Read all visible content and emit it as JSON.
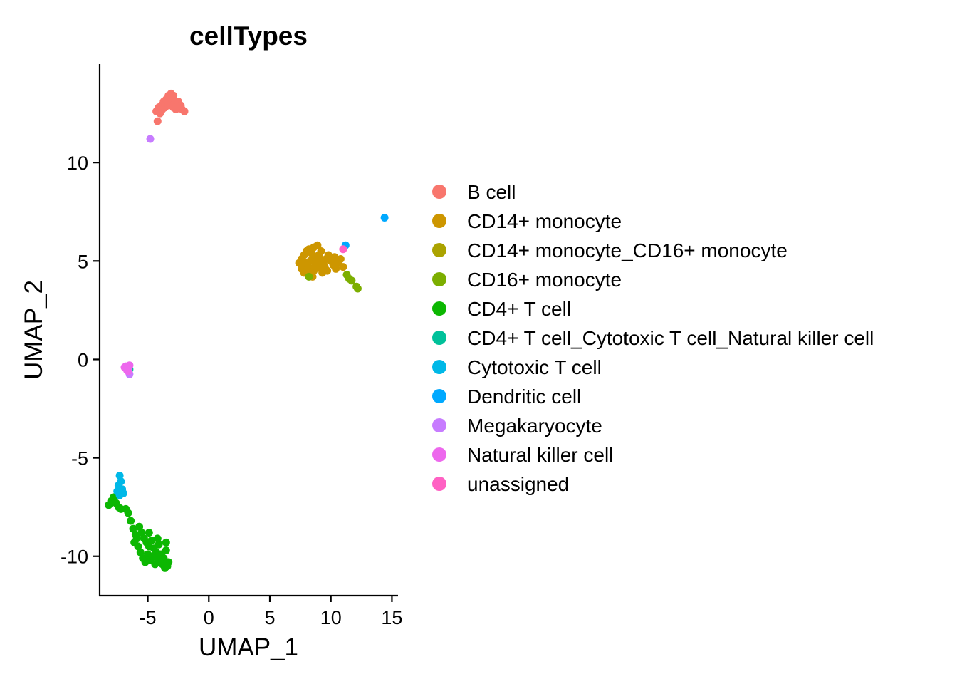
{
  "chart_data": {
    "type": "scatter",
    "title": "cellTypes",
    "xlabel": "UMAP_1",
    "ylabel": "UMAP_2",
    "xlim": [
      -9,
      15.5
    ],
    "ylim": [
      -12,
      15
    ],
    "xticks": [
      -5,
      0,
      5,
      10,
      15
    ],
    "xtick_labels": [
      "-5",
      "0",
      "5",
      "10",
      "15"
    ],
    "yticks": [
      -10,
      -5,
      0,
      5,
      10
    ],
    "ytick_labels": [
      "-10",
      "-5",
      "0",
      "5",
      "10"
    ],
    "grid": false,
    "legend_position": "right",
    "series": [
      {
        "name": "B cell",
        "color": "#F8766D",
        "points": [
          [
            -4.3,
            12.6
          ],
          [
            -4.1,
            12.8
          ],
          [
            -3.9,
            12.9
          ],
          [
            -3.7,
            13.1
          ],
          [
            -3.5,
            13.2
          ],
          [
            -3.3,
            13.4
          ],
          [
            -3.1,
            13.5
          ],
          [
            -2.9,
            13.4
          ],
          [
            -3.2,
            13.3
          ],
          [
            -3.4,
            13.0
          ],
          [
            -3.0,
            13.1
          ],
          [
            -2.8,
            13.0
          ],
          [
            -2.6,
            12.9
          ],
          [
            -2.4,
            12.8
          ],
          [
            -2.2,
            12.7
          ],
          [
            -2.0,
            12.6
          ],
          [
            -2.5,
            13.1
          ],
          [
            -3.6,
            12.8
          ],
          [
            -3.8,
            12.7
          ],
          [
            -4.0,
            12.5
          ],
          [
            -2.7,
            12.7
          ],
          [
            -3.3,
            12.9
          ],
          [
            -2.9,
            12.8
          ],
          [
            -2.3,
            12.9
          ],
          [
            -4.2,
            12.1
          ]
        ]
      },
      {
        "name": "CD14+ monocyte",
        "color": "#CD9600",
        "points": [
          [
            7.4,
            4.9
          ],
          [
            7.6,
            5.1
          ],
          [
            7.8,
            5.3
          ],
          [
            8.0,
            5.5
          ],
          [
            8.2,
            5.6
          ],
          [
            8.4,
            5.4
          ],
          [
            8.6,
            5.2
          ],
          [
            8.8,
            5.0
          ],
          [
            9.0,
            4.8
          ],
          [
            9.2,
            4.6
          ],
          [
            9.4,
            4.9
          ],
          [
            9.6,
            5.1
          ],
          [
            9.8,
            5.3
          ],
          [
            10.0,
            5.0
          ],
          [
            10.2,
            4.8
          ],
          [
            7.6,
            4.6
          ],
          [
            7.8,
            4.4
          ],
          [
            8.0,
            4.5
          ],
          [
            8.2,
            4.3
          ],
          [
            8.4,
            4.6
          ],
          [
            8.6,
            4.5
          ],
          [
            8.8,
            4.7
          ],
          [
            9.0,
            5.3
          ],
          [
            9.2,
            5.5
          ],
          [
            8.6,
            5.7
          ],
          [
            8.9,
            5.8
          ],
          [
            10.4,
            4.6
          ],
          [
            10.6,
            4.9
          ],
          [
            10.8,
            5.1
          ],
          [
            11.0,
            4.7
          ],
          [
            8.3,
            5.0
          ],
          [
            8.7,
            4.9
          ],
          [
            9.1,
            5.1
          ],
          [
            9.5,
            4.7
          ],
          [
            7.9,
            4.9
          ],
          [
            8.1,
            4.8
          ],
          [
            9.7,
            4.5
          ],
          [
            10.3,
            5.2
          ],
          [
            8.5,
            4.2
          ],
          [
            9.3,
            4.4
          ]
        ]
      },
      {
        "name": "CD14+ monocyte_CD16+ monocyte",
        "color": "#ABA300",
        "points": []
      },
      {
        "name": "CD16+ monocyte",
        "color": "#7CAE00",
        "points": [
          [
            11.3,
            4.3
          ],
          [
            11.5,
            4.1
          ],
          [
            11.7,
            4.0
          ],
          [
            12.1,
            3.7
          ],
          [
            12.2,
            3.6
          ],
          [
            8.2,
            4.2
          ]
        ]
      },
      {
        "name": "CD4+ T cell",
        "color": "#0CB702",
        "points": [
          [
            -8.2,
            -7.4
          ],
          [
            -8.0,
            -7.2
          ],
          [
            -7.8,
            -7.0
          ],
          [
            -7.6,
            -7.3
          ],
          [
            -7.4,
            -7.5
          ],
          [
            -7.2,
            -7.6
          ],
          [
            -6.8,
            -7.6
          ],
          [
            -6.6,
            -7.8
          ],
          [
            -6.4,
            -8.2
          ],
          [
            -6.2,
            -8.6
          ],
          [
            -6.0,
            -8.9
          ],
          [
            -5.7,
            -8.5
          ],
          [
            -5.5,
            -8.8
          ],
          [
            -5.3,
            -9.1
          ],
          [
            -5.1,
            -9.3
          ],
          [
            -4.9,
            -9.5
          ],
          [
            -4.7,
            -9.2
          ],
          [
            -4.5,
            -9.6
          ],
          [
            -4.3,
            -9.8
          ],
          [
            -4.1,
            -9.4
          ],
          [
            -3.9,
            -9.9
          ],
          [
            -3.7,
            -10.1
          ],
          [
            -3.5,
            -9.7
          ],
          [
            -3.3,
            -10.3
          ],
          [
            -3.4,
            -10.5
          ],
          [
            -5.8,
            -9.5
          ],
          [
            -5.6,
            -9.8
          ],
          [
            -5.4,
            -10.1
          ],
          [
            -5.2,
            -10.3
          ],
          [
            -5.0,
            -9.9
          ],
          [
            -4.8,
            -10.2
          ],
          [
            -4.6,
            -10.0
          ],
          [
            -4.4,
            -10.4
          ],
          [
            -4.2,
            -10.1
          ],
          [
            -4.0,
            -10.3
          ],
          [
            -3.8,
            -10.4
          ],
          [
            -3.6,
            -10.6
          ],
          [
            -5.9,
            -9.1
          ],
          [
            -6.1,
            -9.3
          ],
          [
            -4.9,
            -8.8
          ],
          [
            -4.2,
            -9.1
          ],
          [
            -3.5,
            -9.3
          ]
        ]
      },
      {
        "name": "CD4+ T cell_Cytotoxic T cell_Natural killer cell",
        "color": "#00C19A",
        "points": [
          [
            -6.5,
            -0.5
          ]
        ]
      },
      {
        "name": "Cytotoxic T cell",
        "color": "#00B8E7",
        "points": [
          [
            -7.3,
            -5.9
          ],
          [
            -7.2,
            -6.2
          ],
          [
            -7.4,
            -6.4
          ],
          [
            -7.1,
            -6.6
          ],
          [
            -7.0,
            -6.8
          ],
          [
            -7.3,
            -6.9
          ],
          [
            -7.5,
            -6.7
          ]
        ]
      },
      {
        "name": "Dendritic cell",
        "color": "#00A9FF",
        "points": [
          [
            14.4,
            7.2
          ],
          [
            11.2,
            5.8
          ]
        ]
      },
      {
        "name": "Megakaryocyte",
        "color": "#C77CFF",
        "points": [
          [
            -4.8,
            11.2
          ],
          [
            -6.5,
            -0.75
          ]
        ]
      },
      {
        "name": "Natural killer cell",
        "color": "#ED68ED",
        "points": [
          [
            -6.8,
            -0.35
          ],
          [
            -6.6,
            -0.45
          ],
          [
            -6.7,
            -0.55
          ],
          [
            -6.5,
            -0.3
          ],
          [
            -6.9,
            -0.4
          ],
          [
            -6.6,
            -0.6
          ]
        ]
      },
      {
        "name": "unassigned",
        "color": "#FF61C3",
        "points": [
          [
            11.0,
            5.6
          ]
        ]
      }
    ]
  }
}
